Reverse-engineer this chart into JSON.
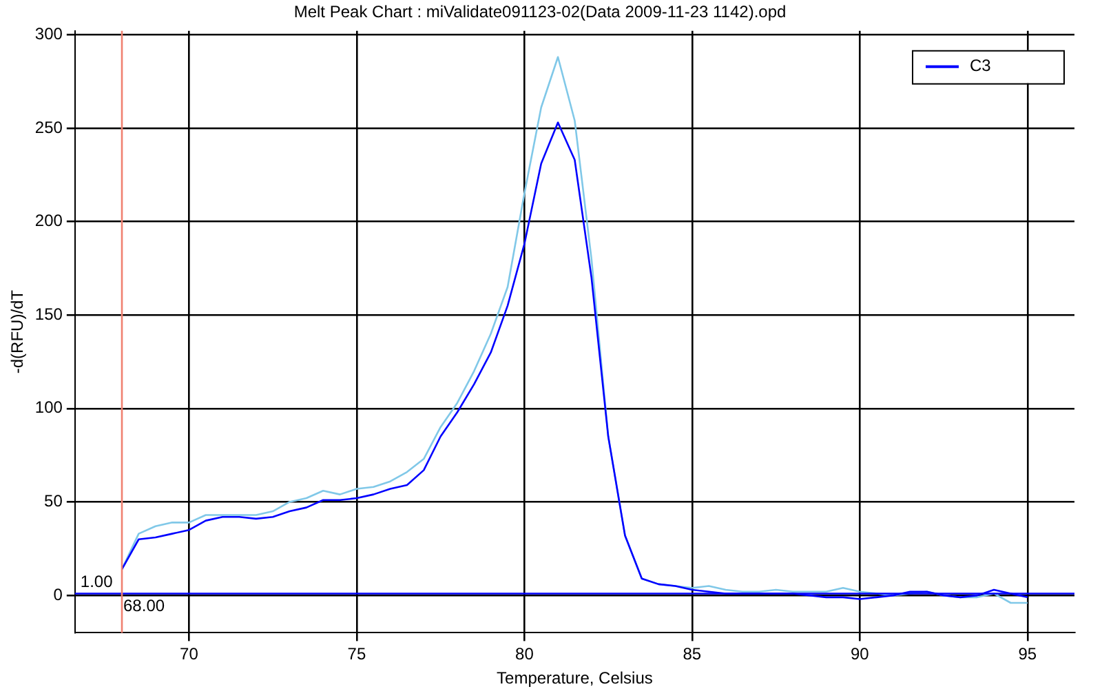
{
  "chart_data": {
    "type": "line",
    "title": "Melt Peak Chart : miValidate091123-02(Data 2009-11-23 1142).opd",
    "xlabel": "Temperature, Celsius",
    "ylabel": "-d(RFU)/dT",
    "x": [
      68,
      68.5,
      69,
      69.5,
      70,
      70.5,
      71,
      71.5,
      72,
      72.5,
      73,
      73.5,
      74,
      74.5,
      75,
      75.5,
      76,
      76.5,
      77,
      77.5,
      78,
      78.5,
      79,
      79.5,
      80,
      80.5,
      81,
      81.5,
      82,
      82.5,
      83,
      83.5,
      84,
      84.5,
      85,
      85.5,
      86,
      86.5,
      87,
      87.5,
      88,
      88.5,
      89,
      89.5,
      90,
      90.5,
      91,
      91.5,
      92,
      92.5,
      93,
      93.5,
      94,
      94.5,
      95
    ],
    "series": [
      {
        "color": "#80c8e8",
        "values": [
          14,
          33,
          37,
          39,
          39,
          43,
          43,
          43,
          43,
          45,
          50,
          52,
          56,
          54,
          57,
          58,
          61,
          66,
          73,
          90,
          103,
          120,
          140,
          165,
          215,
          261,
          288,
          254,
          180,
          85,
          32,
          9,
          6,
          5,
          4,
          5,
          3,
          2,
          2,
          3,
          2,
          2,
          2,
          4,
          2,
          1,
          0,
          1,
          2,
          0,
          -1,
          -1,
          1,
          -4,
          -4
        ]
      },
      {
        "name": "C3",
        "color": "#0000ff",
        "values": [
          14,
          30,
          31,
          33,
          35,
          40,
          42,
          42,
          41,
          42,
          45,
          47,
          51,
          51,
          52,
          54,
          57,
          59,
          67,
          85,
          98,
          113,
          130,
          155,
          188,
          231,
          253,
          233,
          170,
          85,
          32,
          9,
          6,
          5,
          3,
          2,
          1,
          1,
          1,
          1,
          1,
          0,
          -1,
          -1,
          -2,
          -1,
          0,
          2,
          2,
          0,
          -1,
          0,
          3,
          1,
          -1
        ]
      }
    ],
    "xlim": [
      66.6,
      96.4
    ],
    "ylim": [
      -20,
      302
    ],
    "xticks": [
      70,
      75,
      80,
      85,
      90,
      95
    ],
    "yticks": [
      0,
      50,
      100,
      150,
      200,
      250,
      300
    ],
    "ref_lines": [
      {
        "axis": "y",
        "value": 1,
        "label": "1.00",
        "color": "#0000ff"
      },
      {
        "axis": "x",
        "value": 68,
        "label": "68.00",
        "color": "#f08070"
      }
    ],
    "grid": true,
    "legend": "top right",
    "marker": "none",
    "line_style": "solid"
  }
}
